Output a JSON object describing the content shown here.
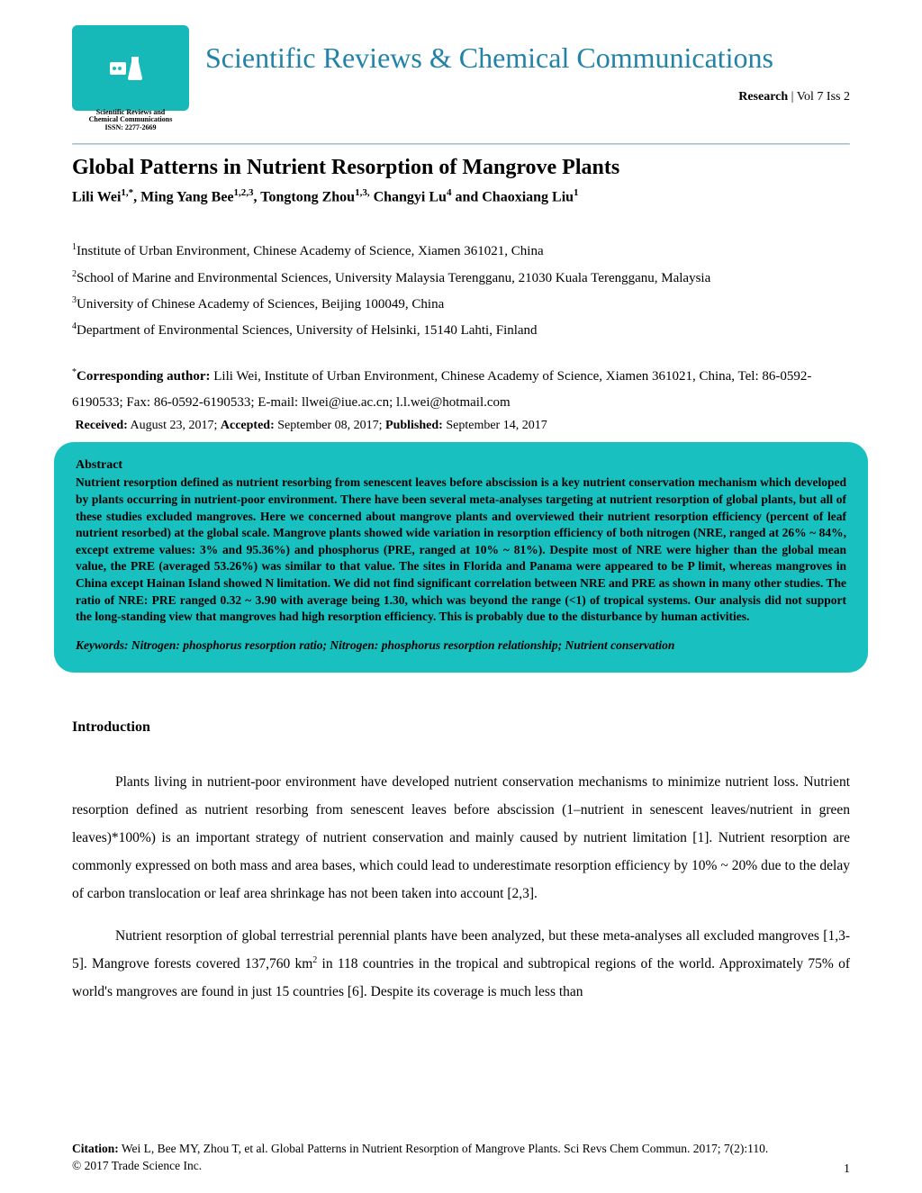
{
  "journal": {
    "title": "Scientific Reviews & Chemical Communications",
    "logo_caption_line1": "Scientific Reviews and",
    "logo_caption_line2": "Chemical Communications",
    "issn": "ISSN: 2277-2669",
    "type_label": "Research",
    "issue": "Vol 7 Iss 2"
  },
  "article": {
    "title": "Global Patterns in Nutrient Resorption of Mangrove Plants",
    "authors_html": "Lili Wei<sup>1,*</sup>, Ming Yang Bee<sup>1,2,3</sup>, Tongtong Zhou<sup>1,3,</sup> Changyi Lu<sup>4</sup> and Chaoxiang Liu<sup>1</sup>",
    "affiliations": [
      "Institute of Urban Environment, Chinese Academy of Science, Xiamen 361021, China",
      "School of Marine and Environmental Sciences, University Malaysia Terengganu, 21030 Kuala Terengganu, Malaysia",
      "University of Chinese Academy of Sciences, Beijing 100049, China",
      "Department of Environmental Sciences, University of Helsinki, 15140 Lahti, Finland"
    ],
    "corresponding_label": "Corresponding author:",
    "corresponding_text": "Lili Wei, Institute of Urban Environment, Chinese Academy of Science, Xiamen 361021, China, Tel: 86-0592-6190533; Fax: 86-0592-6190533; E-mail: llwei@iue.ac.cn; l.l.wei@hotmail.com",
    "received_label": "Received:",
    "received": "August 23, 2017;",
    "accepted_label": "Accepted:",
    "accepted": "September 08, 2017;",
    "published_label": "Published:",
    "published": "September 14, 2017"
  },
  "abstract": {
    "heading": "Abstract",
    "text": "Nutrient resorption defined as nutrient resorbing from senescent leaves before abscission is a key nutrient conservation mechanism which developed by plants occurring in nutrient-poor environment. There have been several meta-analyses targeting at nutrient resorption of global plants, but all of these studies excluded mangroves. Here we concerned about mangrove plants and overviewed their nutrient resorption efficiency (percent of leaf nutrient resorbed) at the global scale. Mangrove plants showed wide variation in resorption efficiency of both nitrogen (NRE, ranged at 26% ~ 84%, except extreme values: 3% and 95.36%) and phosphorus (PRE, ranged at 10% ~ 81%). Despite most of NRE were higher than the global mean value, the PRE (averaged 53.26%) was similar to that value. The sites in Florida and Panama were appeared to be P limit, whereas mangroves in China except Hainan Island showed N limitation. We did not find significant correlation between NRE and PRE as shown in many other studies. The ratio of NRE: PRE ranged 0.32 ~ 3.90 with average being 1.30, which was beyond the range (<1) of tropical systems. Our analysis did not support the long-standing view that mangroves had high resorption efficiency. This is probably due to the disturbance by human activities.",
    "keywords_label": "Keywords:",
    "keywords": "Nitrogen: phosphorus resorption ratio; Nitrogen: phosphorus resorption relationship; Nutrient conservation"
  },
  "intro": {
    "heading": "Introduction",
    "para1": "Plants living in nutrient-poor environment have developed nutrient conservation mechanisms to minimize nutrient loss. Nutrient resorption defined as nutrient resorbing from senescent leaves before abscission (1–nutrient in senescent leaves/nutrient in green leaves)*100%) is an important strategy of nutrient conservation and mainly caused by nutrient limitation [1]. Nutrient resorption are commonly expressed on both mass and area bases, which could lead to underestimate resorption efficiency by 10% ~ 20% due to the delay of carbon translocation or leaf area shrinkage has not been taken into account [2,3].",
    "para2_pre": "Nutrient resorption of global terrestrial perennial plants have been analyzed, but these meta-analyses all excluded mangroves [1,3-5]. Mangrove forests covered 137,760 km",
    "para2_post": " in 118 countries in the tropical and subtropical regions of the world. Approximately 75% of world's mangroves are found in just 15 countries [6]. Despite its coverage is much less than"
  },
  "citation": {
    "label": "Citation:",
    "text": "Wei L, Bee MY, Zhou T, et al. Global Patterns in Nutrient Resorption of Mangrove Plants. Sci Revs Chem Commun. 2017; 7(2):110.",
    "copyright": "© 2017 Trade Science Inc."
  },
  "page_number": "1",
  "colors": {
    "teal": "#19c0c0",
    "title_blue": "#2282a8",
    "background": "#ffffff"
  }
}
